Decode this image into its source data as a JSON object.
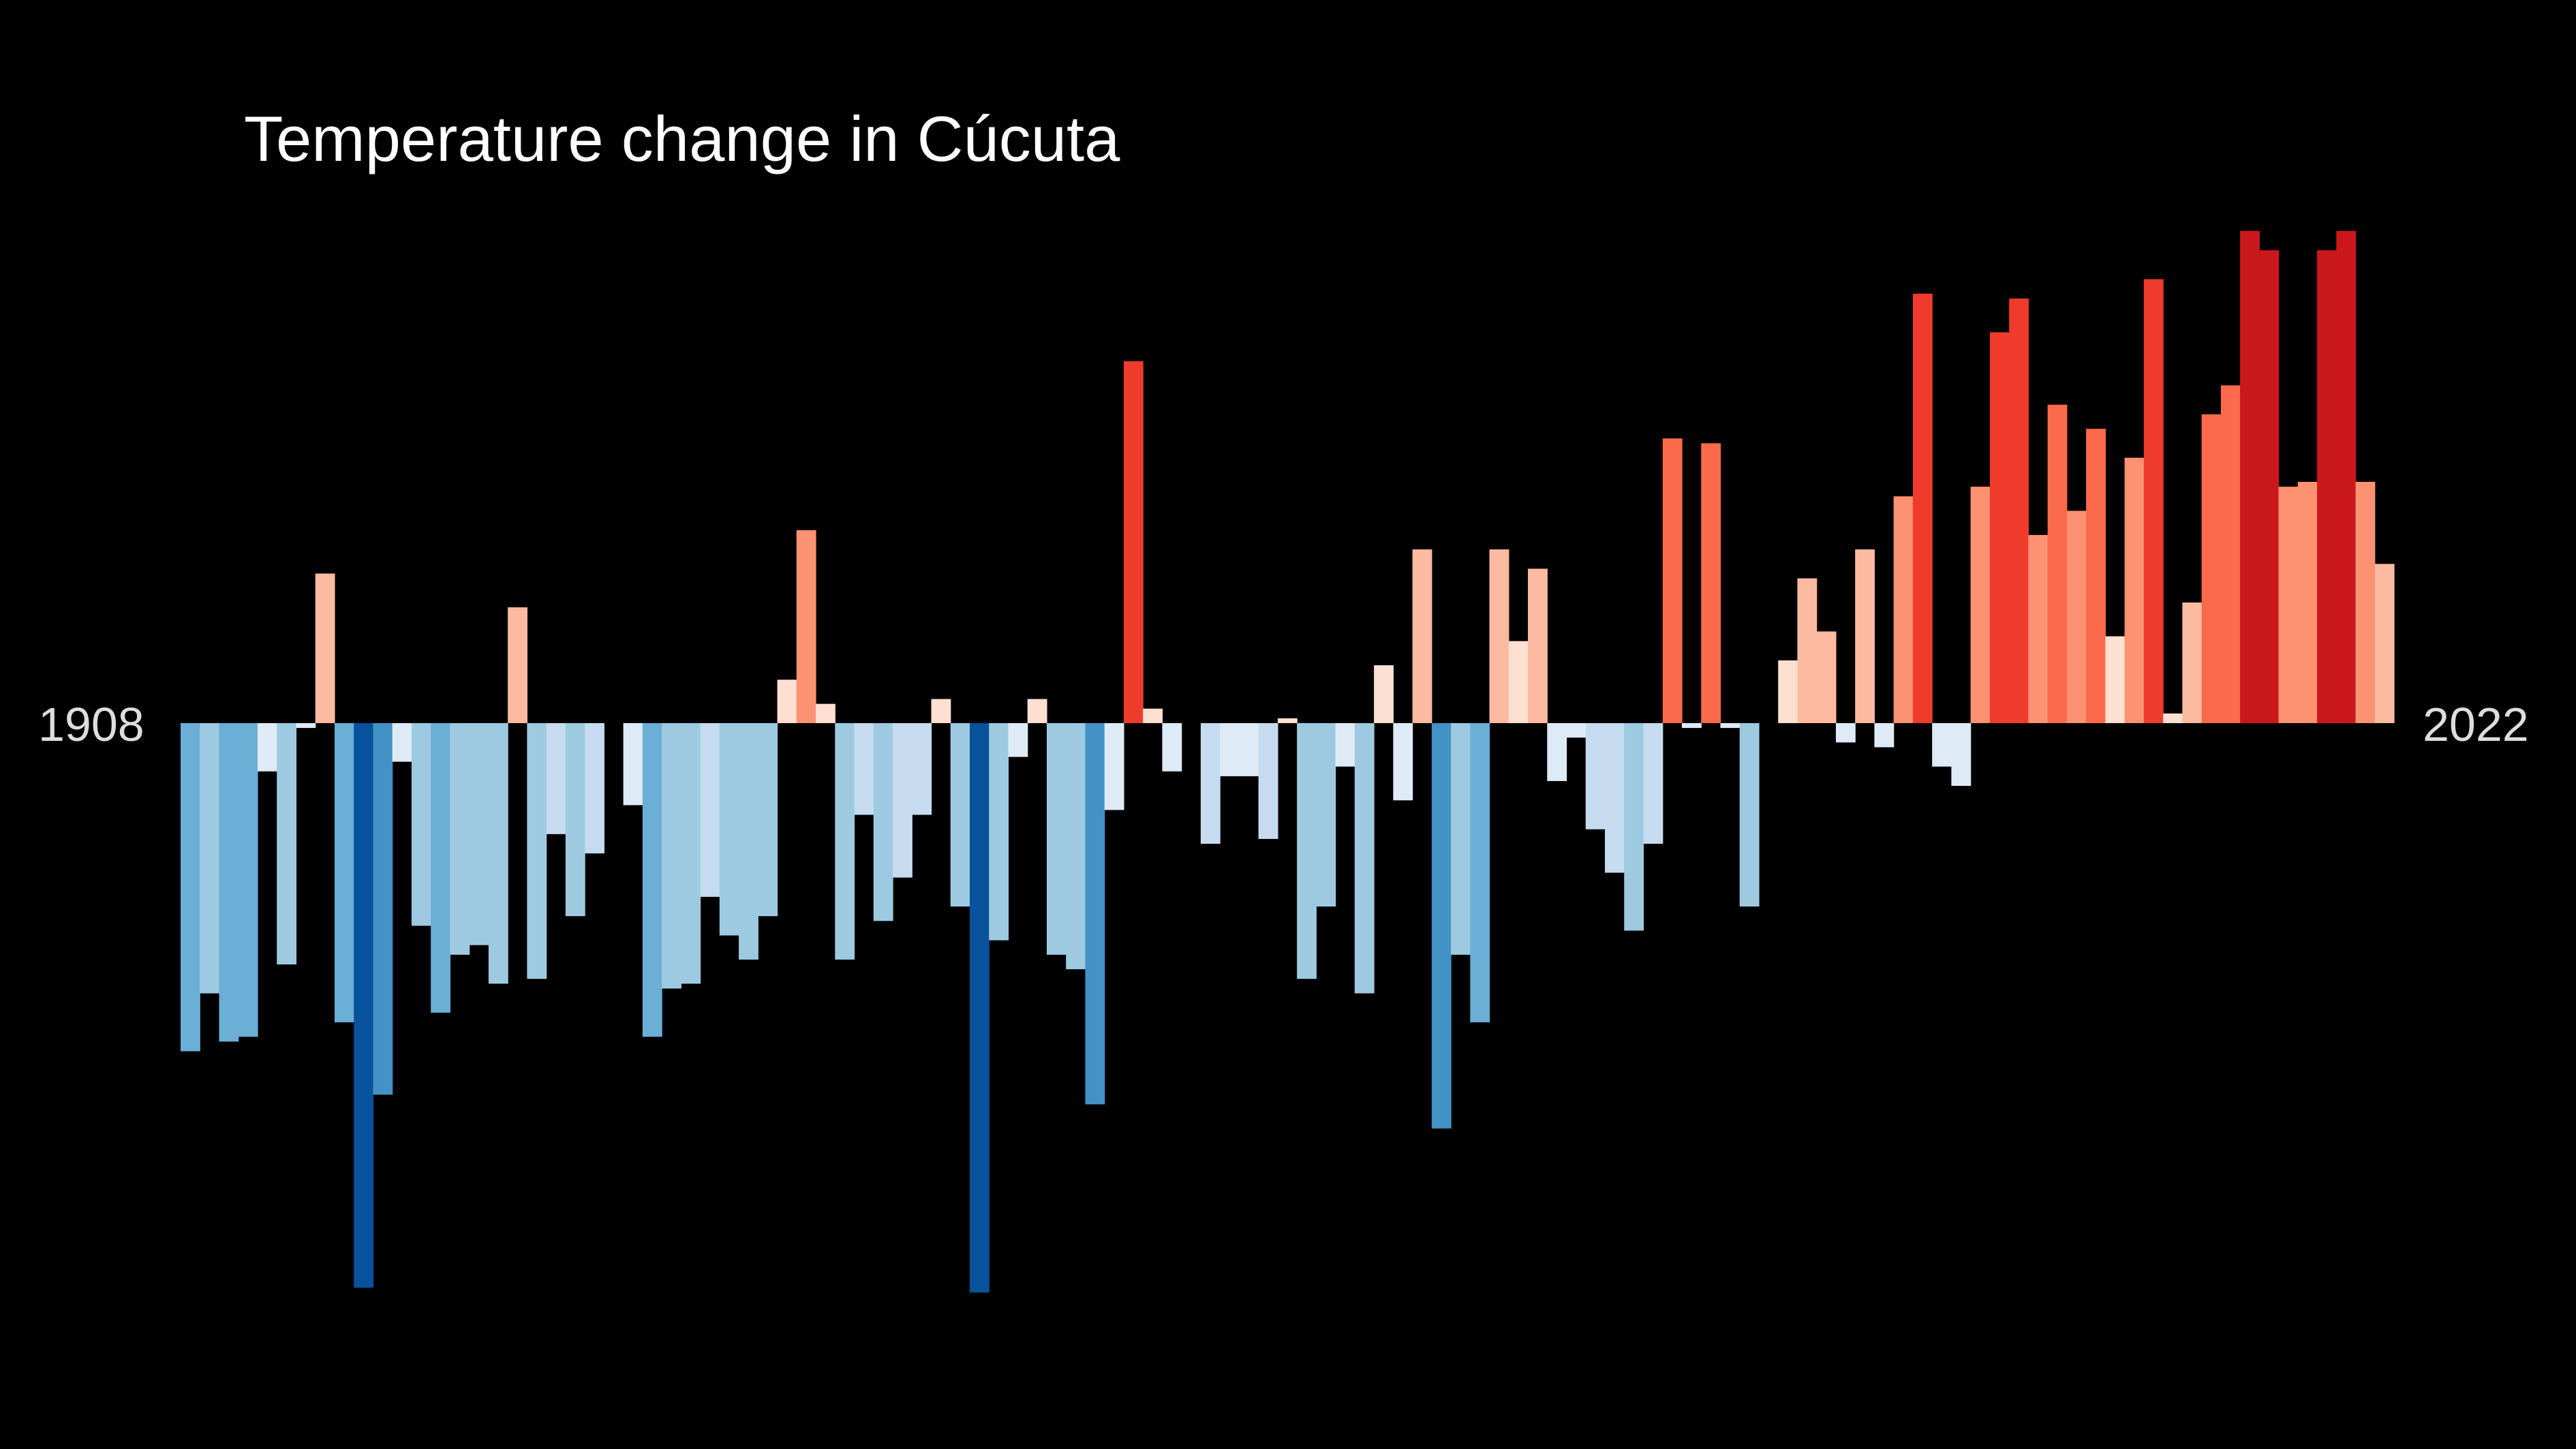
{
  "chart": {
    "title": "Temperature change in Cúcuta",
    "start_label": "1908",
    "end_label": "2022"
  },
  "chart_data": {
    "type": "bar",
    "title": "Temperature change in Cúcuta",
    "xlabel": "",
    "ylabel": "",
    "x_start": 1908,
    "x_end": 2022,
    "categories": [
      1908,
      1909,
      1910,
      1911,
      1912,
      1913,
      1914,
      1915,
      1916,
      1917,
      1918,
      1919,
      1920,
      1921,
      1922,
      1923,
      1924,
      1925,
      1926,
      1927,
      1928,
      1929,
      1930,
      1931,
      1932,
      1933,
      1934,
      1935,
      1936,
      1937,
      1938,
      1939,
      1940,
      1941,
      1942,
      1943,
      1944,
      1945,
      1946,
      1947,
      1948,
      1949,
      1950,
      1951,
      1952,
      1953,
      1954,
      1955,
      1956,
      1957,
      1958,
      1959,
      1960,
      1961,
      1962,
      1963,
      1964,
      1965,
      1966,
      1967,
      1968,
      1969,
      1970,
      1971,
      1972,
      1973,
      1974,
      1975,
      1976,
      1977,
      1978,
      1979,
      1980,
      1981,
      1982,
      1983,
      1984,
      1985,
      1986,
      1987,
      1988,
      1989,
      1990,
      1991,
      1992,
      1993,
      1994,
      1995,
      1996,
      1997,
      1998,
      1999,
      2000,
      2001,
      2002,
      2003,
      2004,
      2005,
      2006,
      2007,
      2008,
      2009,
      2010,
      2011,
      2012,
      2013,
      2014,
      2015,
      2016,
      2017,
      2018,
      2019,
      2020,
      2021,
      2022
    ],
    "values": [
      -0.68,
      -0.56,
      -0.66,
      -0.65,
      -0.1,
      -0.5,
      -0.01,
      0.31,
      -0.62,
      -1.17,
      -0.77,
      -0.08,
      -0.42,
      -0.6,
      -0.48,
      -0.46,
      -0.54,
      0.24,
      -0.53,
      -0.23,
      -0.4,
      -0.27,
      0,
      -0.17,
      -0.65,
      -0.55,
      -0.54,
      -0.36,
      -0.44,
      -0.49,
      -0.4,
      0.09,
      0.4,
      0.04,
      -0.49,
      -0.19,
      -0.41,
      -0.32,
      -0.19,
      0.05,
      -0.38,
      -1.18,
      -0.45,
      -0.07,
      0.05,
      -0.48,
      -0.51,
      -0.79,
      -0.18,
      0.75,
      0.03,
      -0.1,
      0,
      -0.25,
      -0.11,
      -0.11,
      -0.24,
      0.01,
      -0.53,
      -0.38,
      -0.09,
      -0.56,
      0.12,
      -0.16,
      0.36,
      -0.84,
      -0.48,
      -0.62,
      0.36,
      0.17,
      0.32,
      -0.12,
      -0.03,
      -0.22,
      -0.31,
      -0.43,
      -0.25,
      0.59,
      -0.01,
      0.58,
      -0.01,
      -0.38,
      0,
      0.13,
      0.3,
      0.19,
      -0.04,
      0.36,
      -0.05,
      0.47,
      0.89,
      -0.09,
      -0.13,
      0.49,
      0.81,
      0.88,
      0.39,
      0.66,
      0.44,
      0.61,
      0.18,
      0.55,
      0.92,
      0.02,
      0.25,
      0.64,
      0.7,
      1.02,
      0.98,
      0.49,
      0.5,
      0.98,
      1.02,
      0.5,
      0.33
    ],
    "ylim": [
      -1.5,
      1.5
    ],
    "color_scale": [
      "#08306b",
      "#08519c",
      "#2171b5",
      "#4292c6",
      "#6baed6",
      "#9ecae1",
      "#c6dbef",
      "#deebf7",
      "#fee0d2",
      "#fcbba1",
      "#fc9272",
      "#fb6a4a",
      "#ef3b2c",
      "#cb181d",
      "#a50f15",
      "#67000d"
    ],
    "background": "#000000",
    "grid": false
  }
}
